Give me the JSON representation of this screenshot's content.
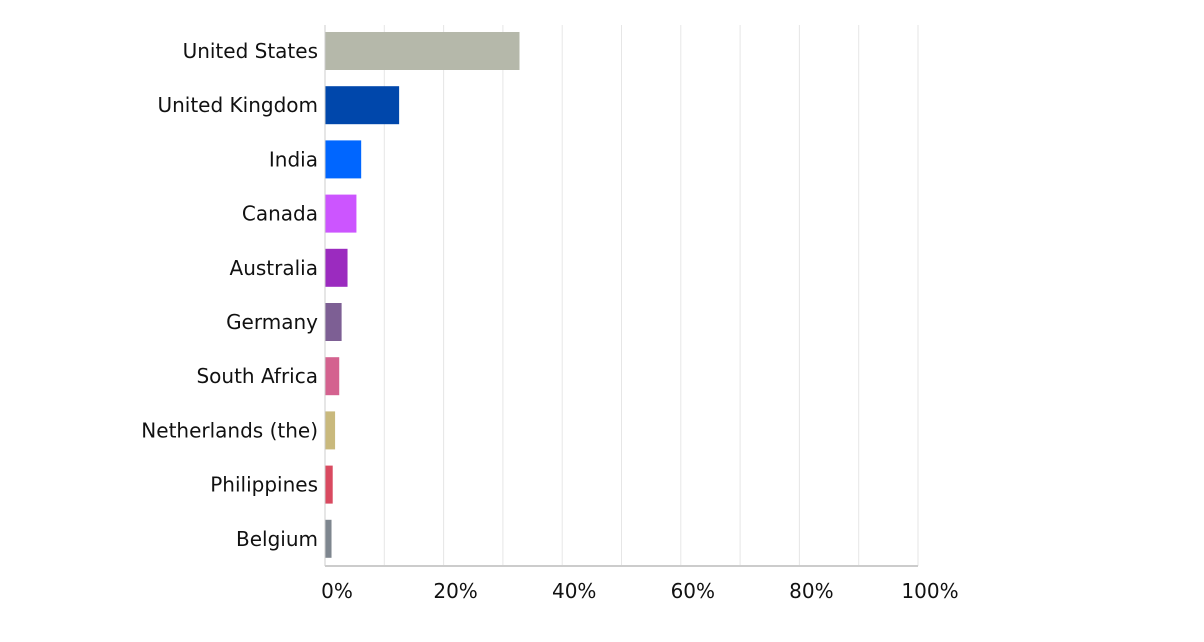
{
  "chart_data": {
    "type": "bar",
    "orientation": "horizontal",
    "title": "",
    "xlabel": "",
    "ylabel": "",
    "categories": [
      "United States",
      "United Kingdom",
      "India",
      "Canada",
      "Australia",
      "Germany",
      "South Africa",
      "Netherlands (the)",
      "Philippines",
      "Belgium"
    ],
    "values": [
      32.8,
      12.5,
      6.1,
      5.3,
      3.8,
      2.8,
      2.4,
      1.7,
      1.3,
      1.1
    ],
    "value_unit": "%",
    "xlim": [
      0,
      100
    ],
    "x_ticks": [
      "0%",
      "20%",
      "40%",
      "60%",
      "80%",
      "100%"
    ],
    "x_tick_values": [
      0,
      20,
      40,
      60,
      80,
      100
    ],
    "grid": "vertical",
    "legend": "none",
    "colors": [
      "#b5b8aa",
      "#0047ab",
      "#0066ff",
      "#cc55ff",
      "#9b2bbf",
      "#7d5f94",
      "#d4628f",
      "#c9b97d",
      "#d94a60",
      "#7e868f"
    ],
    "gridline_color": "#e6e6e6",
    "axis_color": "#cccccc"
  }
}
